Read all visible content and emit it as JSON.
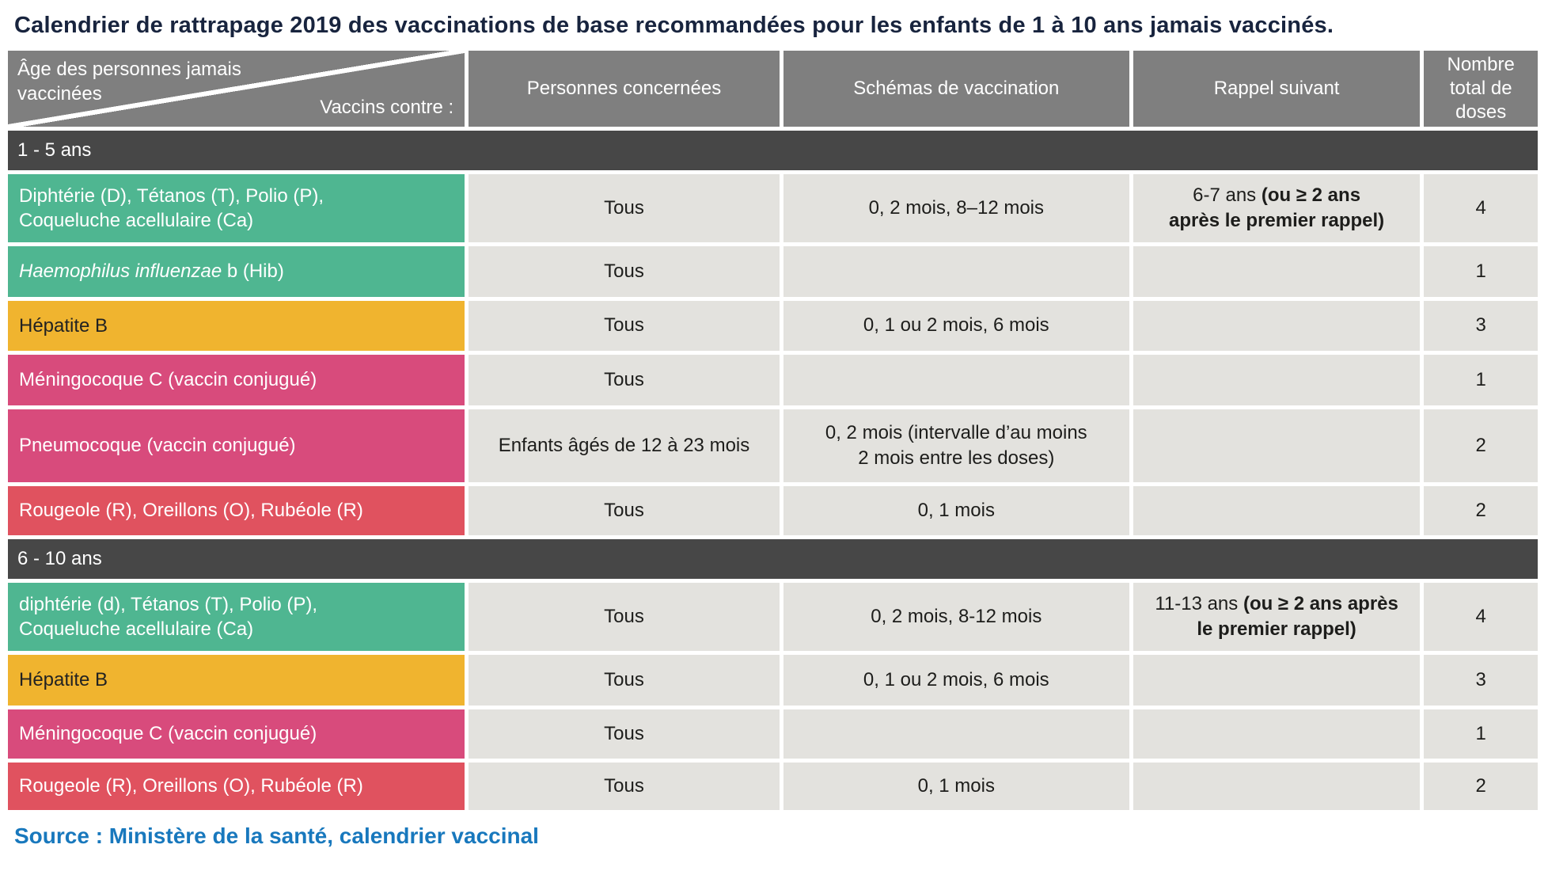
{
  "title": "Calendrier de rattrapage 2019 des vaccinations de base recommandées pour les enfants de 1 à 10 ans jamais vaccinés.",
  "colors": {
    "green": "#4fb691",
    "yellow": "#f0b42f",
    "pink": "#d84b7c",
    "red": "#e0525f",
    "header_gray": "#7f7f7f",
    "band_gray": "#474747",
    "cell_gray": "#e3e2de",
    "title_navy": "#18243e",
    "source_blue": "#1878bd"
  },
  "header": {
    "corner_top": "Âge des personnes jamais\nvaccinées",
    "corner_bottom": "Vaccins contre :",
    "col_personnes": "Personnes concernées",
    "col_schemas": "Schémas de vaccination",
    "col_rappel": "Rappel suivant",
    "col_doses": "Nombre total de doses"
  },
  "sections": [
    {
      "label": "1 - 5 ans",
      "rows": [
        {
          "vaccine": "Diphtérie (D), Tétanos (T), Polio (P),\nCoqueluche acellulaire (Ca)",
          "personnes": "Tous",
          "schema": "0, 2 mois, 8–12 mois",
          "rappel": "6-7 ans ",
          "rappel_bold": "(ou ≥ 2 ans\naprès le premier rappel)",
          "doses": "4"
        },
        {
          "vaccine_italic": "Haemophilus influenzae",
          "vaccine": " b (Hib)",
          "personnes": "Tous",
          "schema": "",
          "rappel": "",
          "rappel_bold": "",
          "doses": "1"
        },
        {
          "vaccine": "Hépatite B",
          "personnes": "Tous",
          "schema": "0, 1 ou 2 mois, 6 mois",
          "rappel": "",
          "rappel_bold": "",
          "doses": "3"
        },
        {
          "vaccine": "Méningocoque C (vaccin conjugué)",
          "personnes": "Tous",
          "schema": "",
          "rappel": "",
          "rappel_bold": "",
          "doses": "1"
        },
        {
          "vaccine": "Pneumocoque (vaccin conjugué)",
          "personnes": "Enfants âgés de 12 à 23 mois",
          "schema": "0, 2 mois  (intervalle d’au moins\n2 mois entre les doses)",
          "rappel": "",
          "rappel_bold": "",
          "doses": "2"
        },
        {
          "vaccine": "Rougeole (R), Oreillons (O), Rubéole (R)",
          "personnes": "Tous",
          "schema": "0, 1 mois",
          "rappel": "",
          "rappel_bold": "",
          "doses": "2"
        }
      ]
    },
    {
      "label": "6 - 10 ans",
      "rows": [
        {
          "vaccine": "diphtérie (d), Tétanos (T), Polio (P),\nCoqueluche acellulaire (Ca)",
          "personnes": "Tous",
          "schema": "0, 2 mois, 8-12 mois",
          "rappel": "11-13 ans ",
          "rappel_bold": "(ou ≥ 2 ans après\nle premier rappel)",
          "doses": "4"
        },
        {
          "vaccine": "Hépatite B",
          "personnes": "Tous",
          "schema": "0, 1 ou 2 mois, 6 mois",
          "rappel": "",
          "rappel_bold": "",
          "doses": "3"
        },
        {
          "vaccine": "Méningocoque C (vaccin conjugué)",
          "personnes": "Tous",
          "schema": "",
          "rappel": "",
          "rappel_bold": "",
          "doses": "1"
        },
        {
          "vaccine": "Rougeole (R), Oreillons (O), Rubéole (R)",
          "personnes": "Tous",
          "schema": "0, 1 mois",
          "rappel": "",
          "rappel_bold": "",
          "doses": "2"
        }
      ]
    }
  ],
  "source": "Source : Ministère de la santé, calendrier vaccinal"
}
